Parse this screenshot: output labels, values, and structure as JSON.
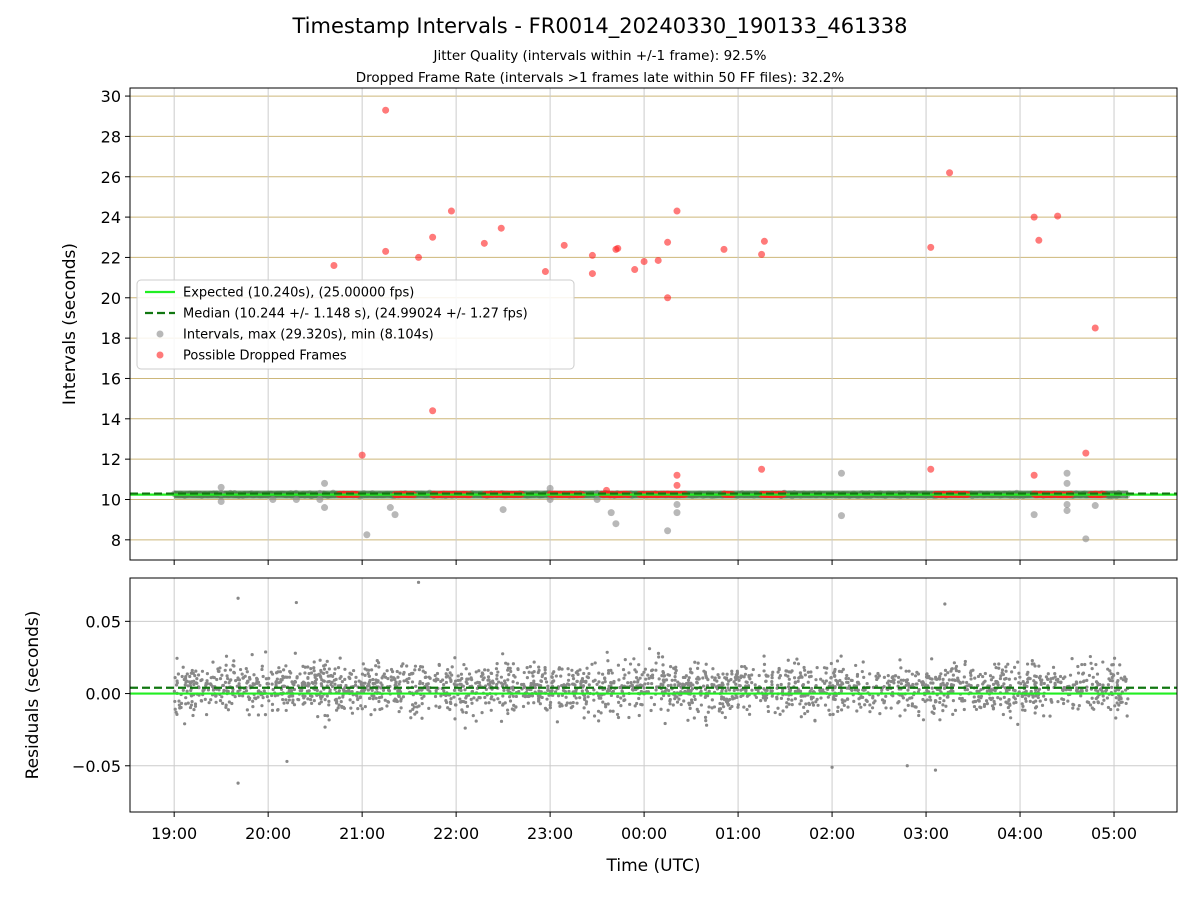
{
  "title": "Timestamp Intervals - FR0014_20240330_190133_461338",
  "subtitle_jitter": "Jitter Quality (intervals within +/-1 frame): 92.5%",
  "subtitle_dropped": "Dropped Frame Rate (intervals >1 frames late within 50 FF files): 32.2%",
  "colors": {
    "expected": "#22ee22",
    "median": "#117711",
    "intervals": "#888888",
    "dropped": "#ff2222",
    "grid_top": "#cdb77a",
    "grid": "#cccccc"
  },
  "chart_data": [
    {
      "type": "scatter",
      "ylabel": "Intervals (seconds)",
      "xlabel": "",
      "ylim": [
        7.0,
        30.4
      ],
      "xlim_hours": [
        18.53,
        29.67
      ],
      "yticks": [
        8,
        10,
        12,
        14,
        16,
        18,
        20,
        22,
        24,
        26,
        28,
        30
      ],
      "x_ticklabels": [
        "19:00",
        "20:00",
        "21:00",
        "22:00",
        "23:00",
        "00:00",
        "01:00",
        "02:00",
        "03:00",
        "04:00",
        "05:00"
      ],
      "x_tick_hours": [
        19,
        20,
        21,
        22,
        23,
        24,
        25,
        26,
        27,
        28,
        29
      ],
      "grid": "on",
      "legend_position": "center-left",
      "legend": [
        {
          "key": "expected",
          "label": "Expected (10.240s), (25.00000 fps)"
        },
        {
          "key": "median",
          "label": "Median (10.244 +/- 1.148 s), (24.99024 +/- 1.27 fps)"
        },
        {
          "key": "intervals",
          "label": "Intervals, max (29.320s), min (8.104s)"
        },
        {
          "key": "dropped",
          "label": "Possible Dropped Frames"
        }
      ],
      "expected_line": 10.24,
      "median_line": 10.244,
      "interval_band": {
        "x_start": 19.0,
        "x_end": 29.15,
        "y": 10.244
      },
      "intervals_outliers": [
        [
          19.5,
          10.3
        ],
        [
          19.5,
          9.9
        ],
        [
          19.5,
          10.6
        ],
        [
          20.05,
          10.0
        ],
        [
          20.3,
          10.0
        ],
        [
          20.55,
          10.3
        ],
        [
          20.55,
          10.0
        ],
        [
          20.6,
          10.8
        ],
        [
          20.6,
          9.6
        ],
        [
          21.05,
          8.25
        ],
        [
          21.3,
          9.6
        ],
        [
          21.35,
          9.25
        ],
        [
          23.0,
          10.55
        ],
        [
          23.0,
          10.0
        ],
        [
          22.5,
          9.5
        ],
        [
          23.5,
          10.3
        ],
        [
          23.5,
          10.0
        ],
        [
          23.65,
          9.35
        ],
        [
          23.7,
          8.8
        ],
        [
          24.25,
          8.45
        ],
        [
          24.35,
          9.75
        ],
        [
          24.35,
          9.35
        ],
        [
          26.1,
          11.3
        ],
        [
          26.1,
          9.2
        ],
        [
          28.15,
          9.25
        ],
        [
          28.5,
          11.3
        ],
        [
          28.5,
          10.8
        ],
        [
          28.5,
          9.75
        ],
        [
          28.5,
          9.45
        ],
        [
          28.7,
          8.05
        ],
        [
          28.8,
          9.7
        ],
        [
          29.1,
          10.25
        ]
      ],
      "dropped_points": [
        [
          20.7,
          21.6
        ],
        [
          21.0,
          12.2
        ],
        [
          21.25,
          22.3
        ],
        [
          21.25,
          29.3
        ],
        [
          21.6,
          22.0
        ],
        [
          21.75,
          23.0
        ],
        [
          21.75,
          14.4
        ],
        [
          21.95,
          24.3
        ],
        [
          22.3,
          22.7
        ],
        [
          22.48,
          23.45
        ],
        [
          22.95,
          21.3
        ],
        [
          23.15,
          22.6
        ],
        [
          23.45,
          22.1
        ],
        [
          23.45,
          21.2
        ],
        [
          23.6,
          10.45
        ],
        [
          23.7,
          22.4
        ],
        [
          23.72,
          22.45
        ],
        [
          23.9,
          21.4
        ],
        [
          24.0,
          21.8
        ],
        [
          24.15,
          21.85
        ],
        [
          24.25,
          22.75
        ],
        [
          24.25,
          20.0
        ],
        [
          24.35,
          24.3
        ],
        [
          24.35,
          11.2
        ],
        [
          24.35,
          10.7
        ],
        [
          24.85,
          22.4
        ],
        [
          25.25,
          22.15
        ],
        [
          25.28,
          22.8
        ],
        [
          25.25,
          11.5
        ],
        [
          27.05,
          22.5
        ],
        [
          27.05,
          11.5
        ],
        [
          27.25,
          26.2
        ],
        [
          28.15,
          24.0
        ],
        [
          28.2,
          22.85
        ],
        [
          28.15,
          11.2
        ],
        [
          28.4,
          24.05
        ],
        [
          28.7,
          12.3
        ],
        [
          28.8,
          18.5
        ]
      ],
      "dropped_bands": [
        [
          20.75,
          20.95
        ],
        [
          21.35,
          21.55
        ],
        [
          21.75,
          22.15
        ],
        [
          22.3,
          22.7
        ],
        [
          23.0,
          23.35
        ],
        [
          23.55,
          23.85
        ],
        [
          23.95,
          24.45
        ],
        [
          24.85,
          24.95
        ],
        [
          25.25,
          25.5
        ],
        [
          27.1,
          27.45
        ],
        [
          28.15,
          28.55
        ],
        [
          28.75,
          28.9
        ]
      ]
    },
    {
      "type": "scatter",
      "ylabel": "Residuals (seconds)",
      "xlabel": "Time (UTC)",
      "ylim": [
        -0.082,
        0.08
      ],
      "yticks": [
        -0.05,
        0.0,
        0.05
      ],
      "ytick_labels": [
        "−0.05",
        "0.00",
        "0.05"
      ],
      "xlim_hours": [
        18.53,
        29.67
      ],
      "grid": "on",
      "expected_line": 0.0,
      "median_line": 0.004,
      "residual_points_note_count": 2400,
      "residual_outliers": [
        [
          19.68,
          -0.062
        ],
        [
          20.2,
          -0.047
        ],
        [
          19.68,
          0.066
        ],
        [
          20.3,
          0.063
        ],
        [
          21.6,
          0.077
        ],
        [
          26.0,
          -0.051
        ],
        [
          26.8,
          -0.05
        ],
        [
          27.1,
          -0.053
        ],
        [
          27.2,
          0.062
        ]
      ]
    }
  ]
}
